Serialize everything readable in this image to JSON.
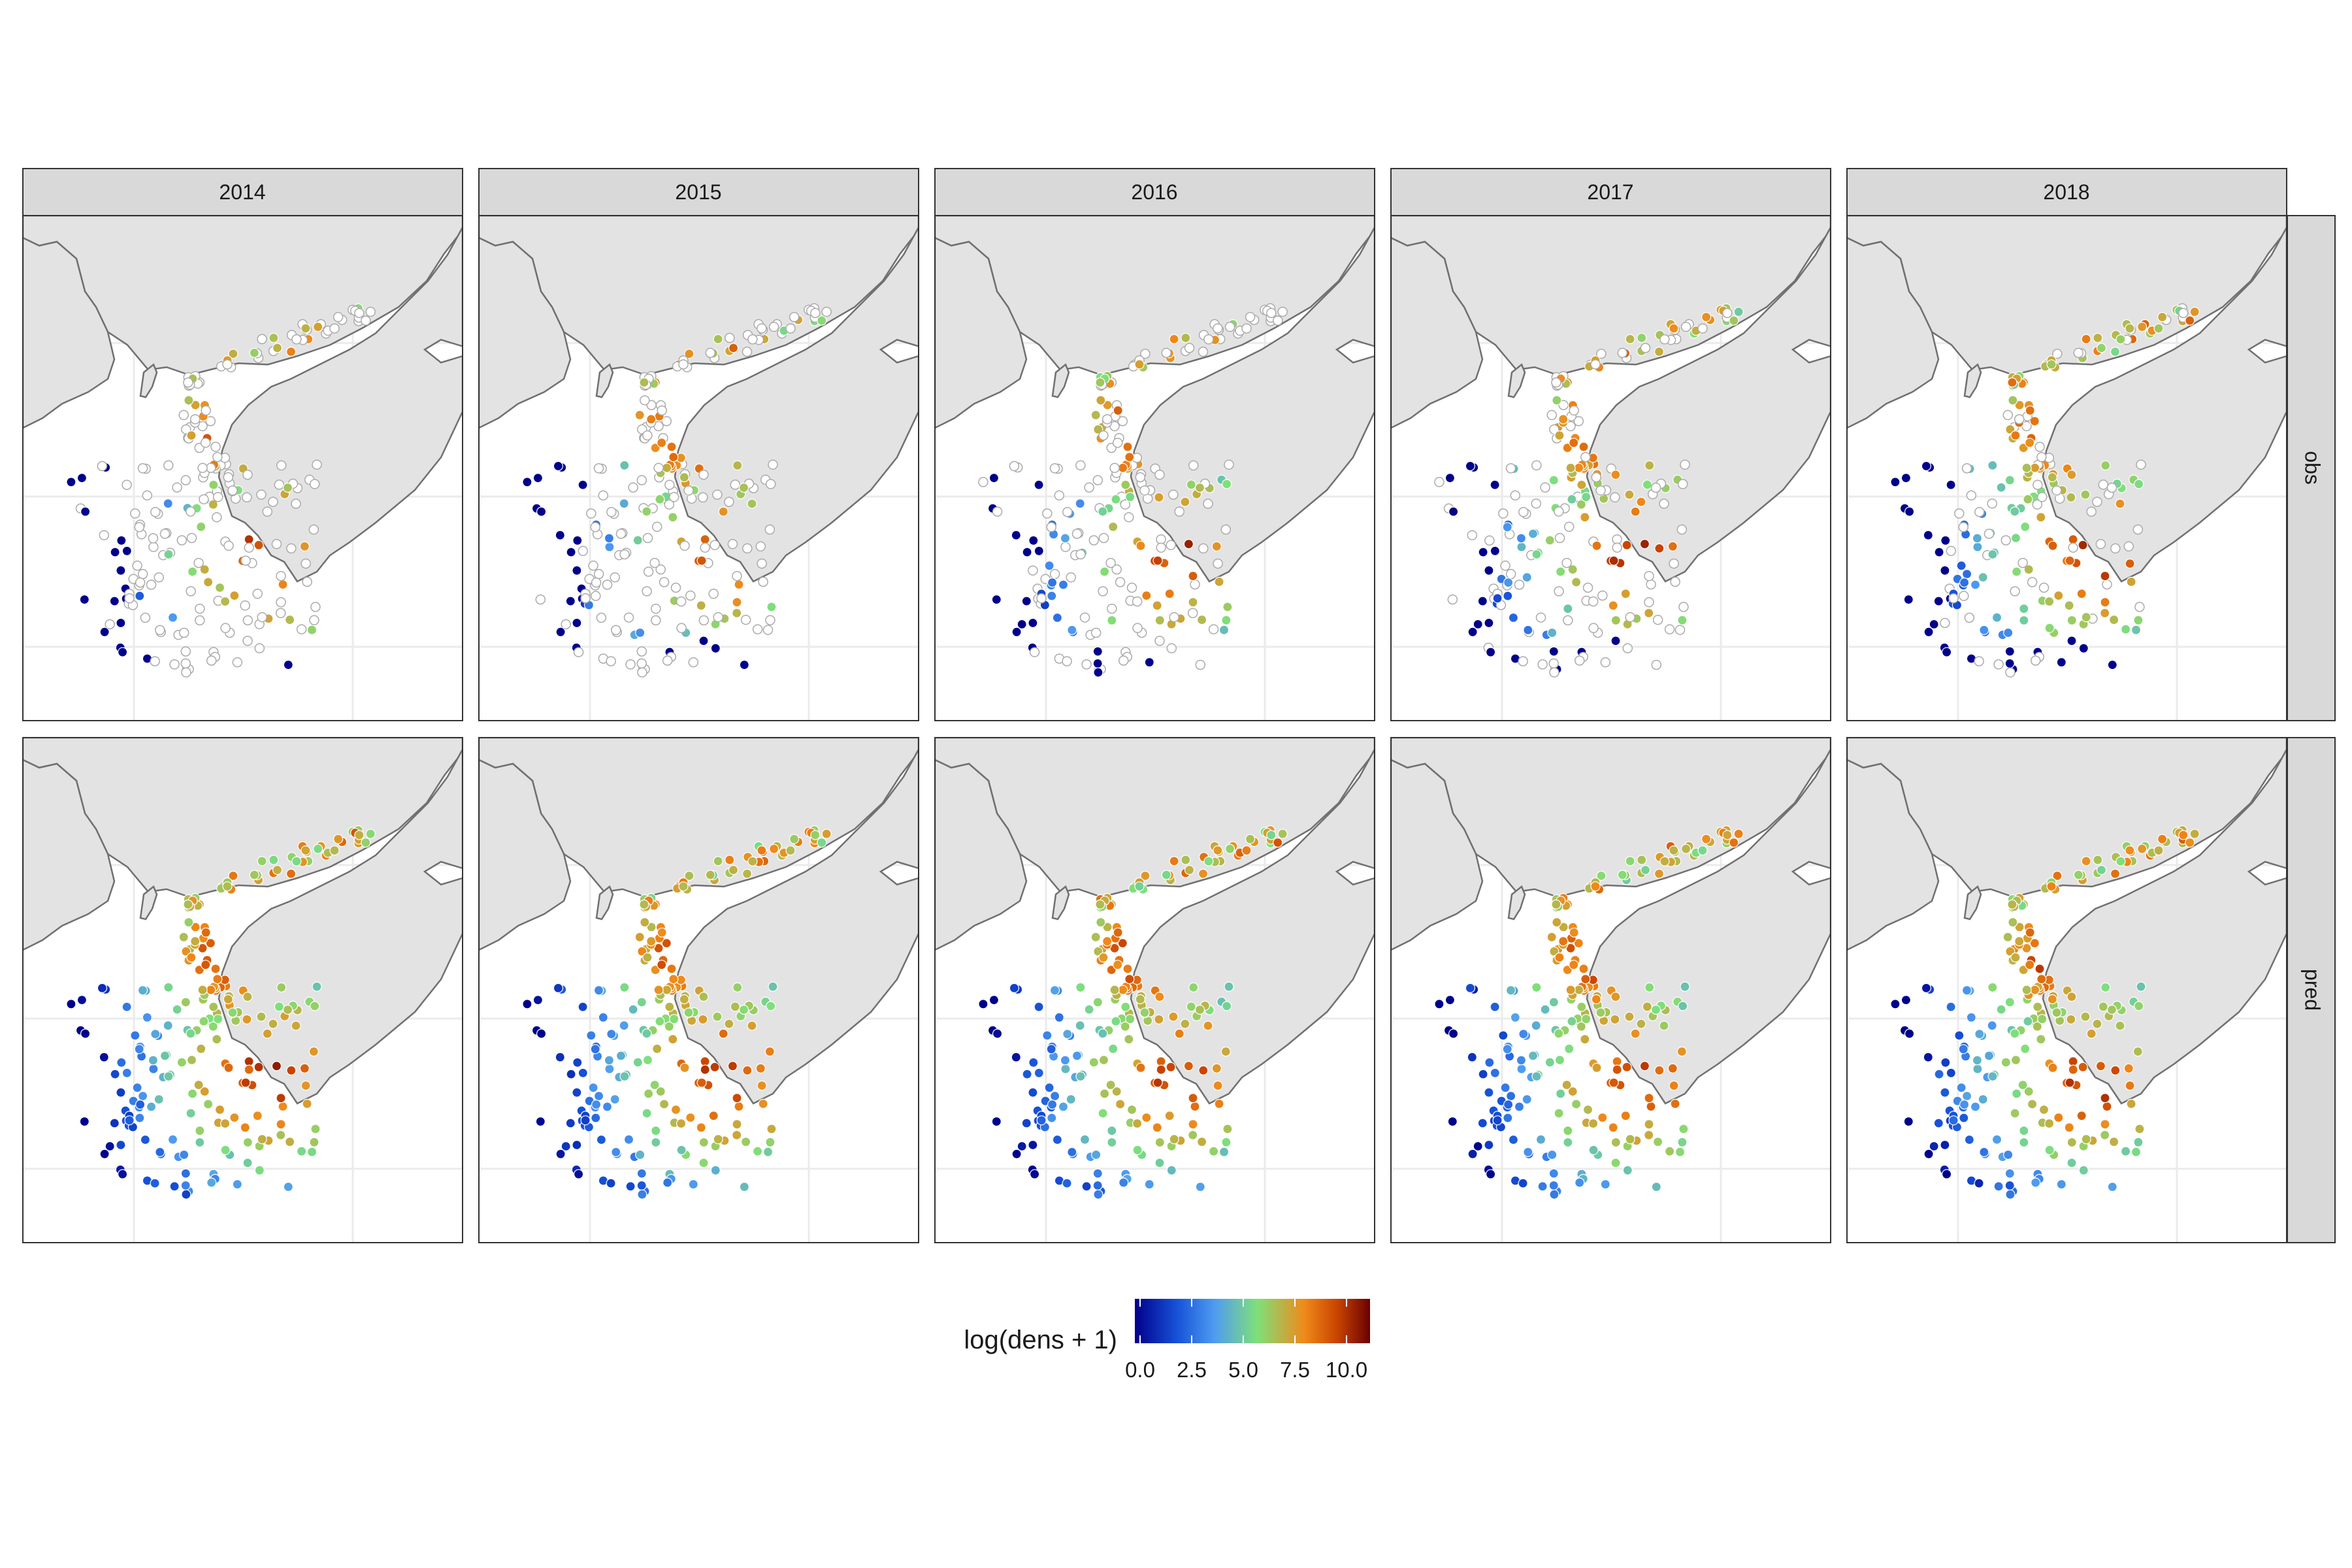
{
  "facets": {
    "columns": [
      "2014",
      "2015",
      "2016",
      "2017",
      "2018"
    ],
    "rows": [
      "obs",
      "pred"
    ]
  },
  "legend": {
    "title": "log(dens + 1)",
    "ticks": [
      "0.0",
      "2.5",
      "5.0",
      "7.5",
      "10.0"
    ],
    "colors": [
      "#00008b",
      "#1652d8",
      "#4f9cf0",
      "#7fe07a",
      "#f08a1a",
      "#c94400",
      "#6a0000"
    ]
  },
  "colors": {
    "land": "#e3e3e3",
    "coastline": "#707070",
    "strip": "#d9d9d9",
    "grid": "#ebebeb",
    "missing_point": "#ffffff"
  },
  "chart_data": {
    "type": "scatter",
    "description_of_encoding": "point color = log(dens + 1); open circles = no catch",
    "value_range": [
      0,
      10.5
    ]
  }
}
